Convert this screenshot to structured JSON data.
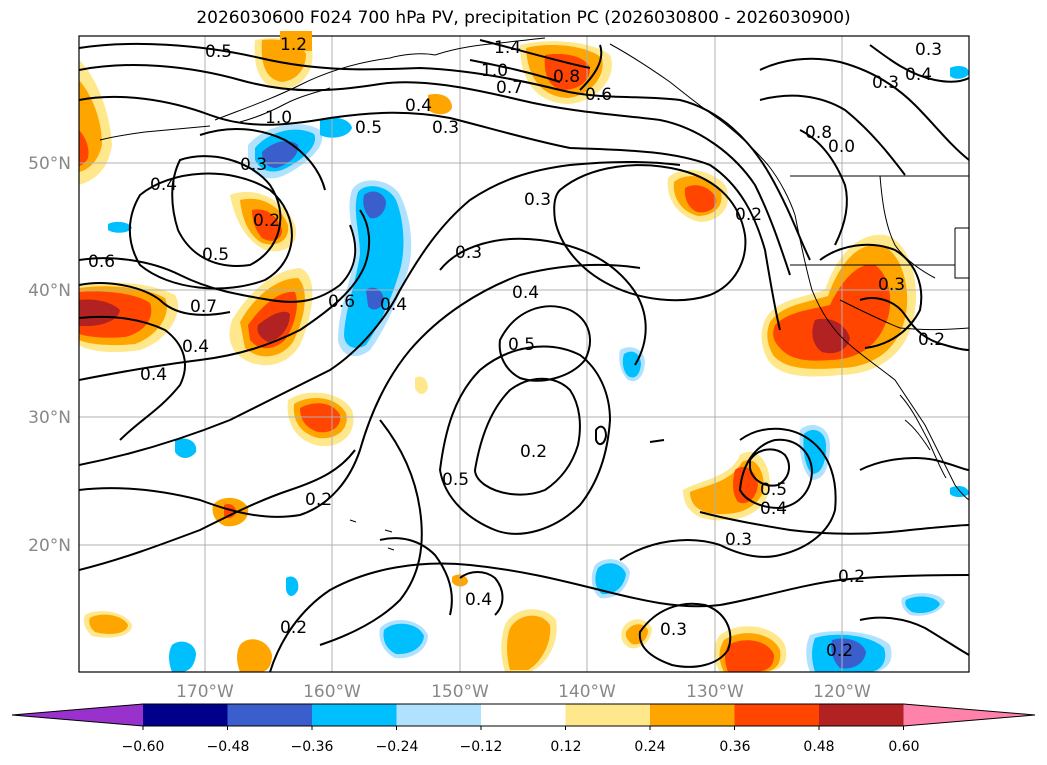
{
  "title": "2026030600 F024 700 hPa PV, precipitation PC (2026030800 - 2026030900)",
  "map": {
    "lon_labels": [
      "170°W",
      "160°W",
      "150°W",
      "140°W",
      "130°W",
      "120°W"
    ],
    "lat_labels": [
      "50°N",
      "40°N",
      "30°N",
      "20°N"
    ],
    "contour_labels": [
      "1.2",
      "1.4",
      "1.0",
      "0.7",
      "0.8",
      "0.6",
      "0.5",
      "0.4",
      "0.3",
      "0.3",
      "0.4",
      "0.5",
      "1.0",
      "0.3",
      "0.4",
      "0.2",
      "0.5",
      "0.6",
      "0.7",
      "0.4",
      "0.6",
      "0.4",
      "0.3",
      "0.8",
      "0.0",
      "0.2",
      "0.4",
      "0.5",
      "0.2",
      "0.3",
      "0.2",
      "0.5",
      "0.2",
      "0.5",
      "0.4",
      "0.3",
      "0.2",
      "0.4",
      "0.2",
      "0.3",
      "0.2",
      "0.3",
      "0.4",
      "0.3"
    ]
  },
  "colorbar": {
    "ticks": [
      "−0.60",
      "−0.48",
      "−0.36",
      "−0.24",
      "−0.12",
      "0.12",
      "0.24",
      "0.36",
      "0.48",
      "0.60"
    ],
    "colors": [
      "#9932cc",
      "#00008b",
      "#3a5fcd",
      "#00bfff",
      "#b0e2ff",
      "#ffffff",
      "#ffe78c",
      "#ffa500",
      "#ff4500",
      "#b22222",
      "#ff82ab"
    ]
  }
}
